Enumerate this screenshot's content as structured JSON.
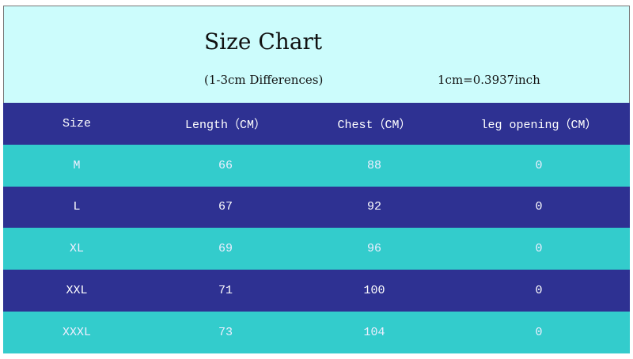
{
  "header": {
    "title": "Size Chart",
    "subtitle": "(1-3cm Differences)",
    "conversion": "1cm=0.3937inch"
  },
  "table": {
    "columns": [
      "Size",
      "Length（CM）",
      "Chest（CM）",
      "leg opening（CM）"
    ],
    "rows": [
      [
        "M",
        66,
        88,
        0
      ],
      [
        "L",
        67,
        92,
        0
      ],
      [
        "XL",
        69,
        96,
        0
      ],
      [
        "XXL",
        71,
        100,
        0
      ],
      [
        "XXXL",
        73,
        104,
        0
      ]
    ]
  }
}
